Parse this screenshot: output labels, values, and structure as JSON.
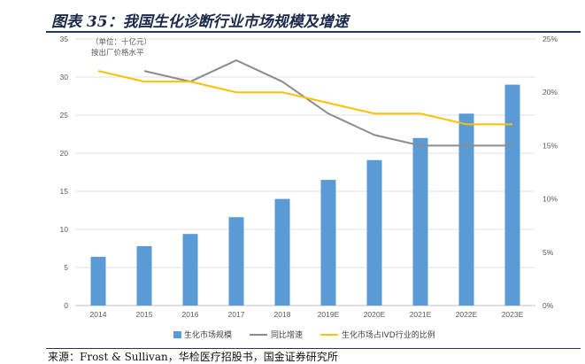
{
  "figure": {
    "title": "图表 35：我国生化诊断行业市场规模及增速",
    "source": "来源：Frost & Sullivan，华检医疗招股书，国金证券研究所"
  },
  "chart_data": {
    "type": "bar+line",
    "categories": [
      "2014",
      "2015",
      "2016",
      "2017",
      "2018",
      "2019E",
      "2020E",
      "2021E",
      "2022E",
      "2023E"
    ],
    "unit_note_line1": "（单位：十亿元）",
    "unit_note_line2": "按出厂价格水平",
    "left_axis": {
      "ylim": [
        0,
        35
      ],
      "ticks": [
        "0",
        "5",
        "10",
        "15",
        "20",
        "25",
        "30",
        "35"
      ]
    },
    "right_axis": {
      "ylim": [
        0,
        0.25
      ],
      "ticks": [
        "0%",
        "5%",
        "10%",
        "15%",
        "20%",
        "25%"
      ]
    },
    "series": [
      {
        "name": "生化市场规模",
        "kind": "bar",
        "axis": "left",
        "color": "#5b9bd5",
        "values": [
          6.4,
          7.8,
          9.4,
          11.6,
          14.0,
          16.5,
          19.1,
          22.0,
          25.2,
          29.0
        ]
      },
      {
        "name": "同比增速",
        "kind": "line",
        "axis": "right",
        "color": "#8c8c8c",
        "values": [
          null,
          0.22,
          0.21,
          0.23,
          0.21,
          0.18,
          0.16,
          0.15,
          0.15,
          0.15
        ]
      },
      {
        "name": "生化市场占IVD行业的比例",
        "kind": "line",
        "axis": "right",
        "color": "#ffc000",
        "values": [
          0.22,
          0.21,
          0.21,
          0.2,
          0.2,
          0.19,
          0.18,
          0.18,
          0.17,
          0.17
        ]
      }
    ]
  }
}
